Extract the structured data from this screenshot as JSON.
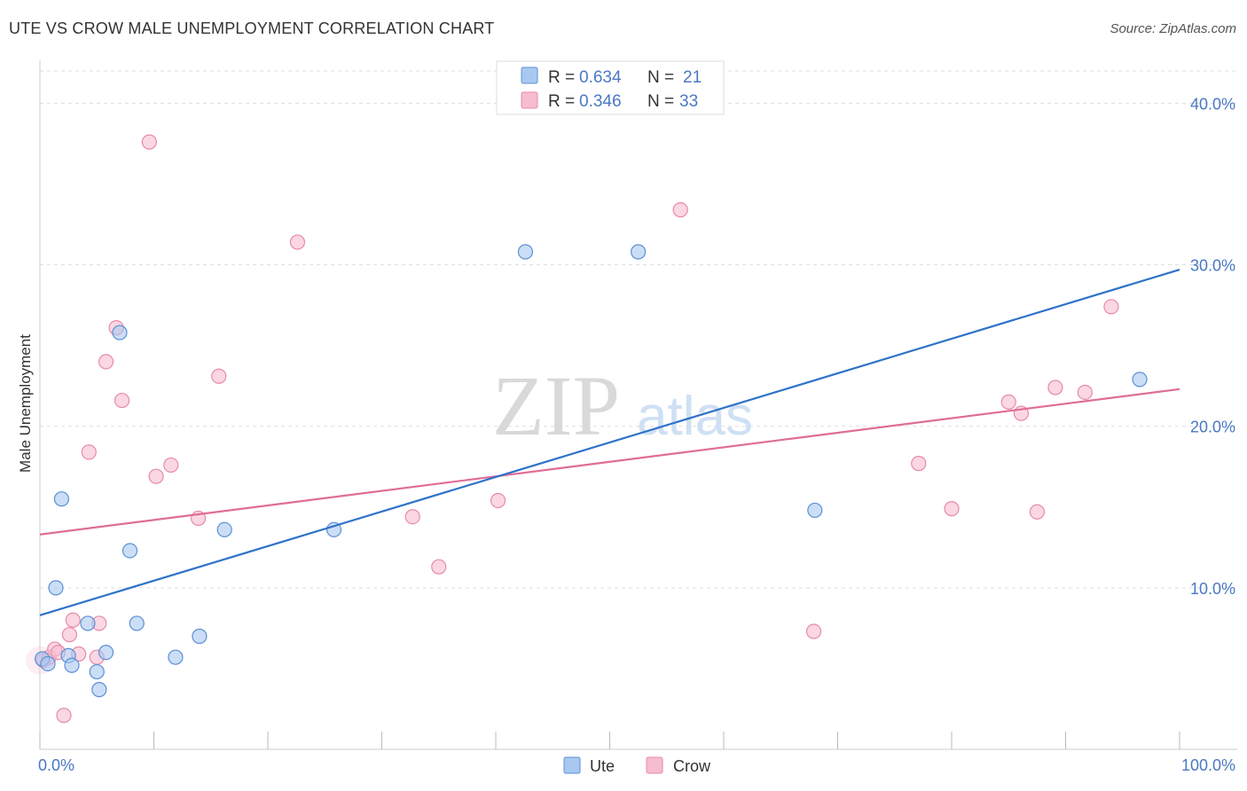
{
  "header": {
    "title": "UTE VS CROW MALE UNEMPLOYMENT CORRELATION CHART",
    "source": "Source: ZipAtlas.com"
  },
  "watermark": {
    "zip": "ZIP",
    "atlas": "atlas"
  },
  "colors": {
    "ute_fill": "#a9c8f0",
    "ute_stroke": "#5b8fd6",
    "ute_line": "#2f72c9",
    "crow_fill": "#f6bcd0",
    "crow_stroke": "#e88aa8",
    "crow_line": "#e06c97",
    "axis_label": "#4a78c2",
    "grid": "#dddddd"
  },
  "chart_data": {
    "type": "scatter",
    "title": "UTE VS CROW MALE UNEMPLOYMENT CORRELATION CHART",
    "xlabel": "",
    "ylabel": "Male Unemployment",
    "xlim": [
      0,
      100
    ],
    "ylim": [
      0,
      42
    ],
    "x_tick_labels": [
      {
        "value": 0,
        "label": "0.0%"
      },
      {
        "value": 100,
        "label": "100.0%"
      }
    ],
    "y_tick_labels": [
      {
        "value": 10,
        "label": "10.0%"
      },
      {
        "value": 20,
        "label": "20.0%"
      },
      {
        "value": 30,
        "label": "30.0%"
      },
      {
        "value": 40,
        "label": "40.0%"
      }
    ],
    "grid": true,
    "legend_position": "top-center",
    "stats": [
      {
        "r_label": "R =",
        "r": "0.634",
        "n_label": "N =",
        "n": "21"
      },
      {
        "r_label": "R =",
        "r": "0.346",
        "n_label": "N =",
        "n": "33"
      }
    ],
    "series": [
      {
        "name": "Ute",
        "points": [
          [
            0.2,
            5.6
          ],
          [
            0.7,
            5.3
          ],
          [
            1.4,
            10.0
          ],
          [
            1.9,
            15.5
          ],
          [
            2.5,
            5.8
          ],
          [
            2.8,
            5.2
          ],
          [
            4.2,
            7.8
          ],
          [
            5.0,
            4.8
          ],
          [
            5.2,
            3.7
          ],
          [
            5.8,
            6.0
          ],
          [
            7.0,
            25.8
          ],
          [
            7.9,
            12.3
          ],
          [
            8.5,
            7.8
          ],
          [
            11.9,
            5.7
          ],
          [
            14.0,
            7.0
          ],
          [
            16.2,
            13.6
          ],
          [
            25.8,
            13.6
          ],
          [
            42.6,
            30.8
          ],
          [
            52.5,
            30.8
          ],
          [
            68.0,
            14.8
          ],
          [
            96.5,
            22.9
          ]
        ],
        "trend": {
          "x": [
            0,
            100
          ],
          "y": [
            8.3,
            29.7
          ]
        }
      },
      {
        "name": "Crow",
        "points": [
          [
            0.3,
            5.5
          ],
          [
            0.8,
            5.7
          ],
          [
            1.3,
            6.2
          ],
          [
            1.6,
            6.0
          ],
          [
            2.1,
            2.1
          ],
          [
            2.6,
            7.1
          ],
          [
            2.9,
            8.0
          ],
          [
            3.4,
            5.9
          ],
          [
            4.3,
            18.4
          ],
          [
            5.2,
            7.8
          ],
          [
            5.0,
            5.7
          ],
          [
            5.8,
            24.0
          ],
          [
            6.7,
            26.1
          ],
          [
            7.2,
            21.6
          ],
          [
            9.6,
            37.6
          ],
          [
            10.2,
            16.9
          ],
          [
            11.5,
            17.6
          ],
          [
            13.9,
            14.3
          ],
          [
            15.7,
            23.1
          ],
          [
            22.6,
            31.4
          ],
          [
            32.7,
            14.4
          ],
          [
            35.0,
            11.3
          ],
          [
            40.2,
            15.4
          ],
          [
            56.2,
            33.4
          ],
          [
            67.9,
            7.3
          ],
          [
            77.1,
            17.7
          ],
          [
            80.0,
            14.9
          ],
          [
            85.0,
            21.5
          ],
          [
            86.1,
            20.8
          ],
          [
            87.5,
            14.7
          ],
          [
            89.1,
            22.4
          ],
          [
            91.7,
            22.1
          ],
          [
            94.0,
            27.4
          ]
        ],
        "trend": {
          "x": [
            0,
            100
          ],
          "y": [
            13.3,
            22.3
          ]
        }
      }
    ]
  }
}
